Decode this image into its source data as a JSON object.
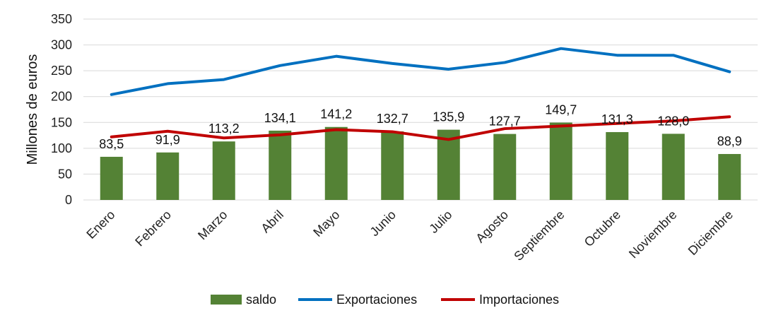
{
  "chart_data": {
    "type": "bar",
    "categories": [
      "Enero",
      "Febrero",
      "Marzo",
      "Abril",
      "Mayo",
      "Junio",
      "Julio",
      "Agosto",
      "Septiembre",
      "Octubre",
      "Noviembre",
      "Diciembre"
    ],
    "series": [
      {
        "name": "saldo",
        "type": "bar",
        "values": [
          83.5,
          91.9,
          113.2,
          134.1,
          141.2,
          132.7,
          135.9,
          127.7,
          149.7,
          131.3,
          128.0,
          88.9
        ],
        "color": "#548235"
      },
      {
        "name": "Exportaciones",
        "type": "line",
        "values": [
          204,
          225,
          233,
          260,
          278,
          264,
          253,
          266,
          293,
          280,
          280,
          248
        ],
        "color": "#0070c0"
      },
      {
        "name": "Importaciones",
        "type": "line",
        "values": [
          122,
          133,
          120,
          126,
          136,
          132,
          117,
          138,
          143,
          148,
          153,
          161
        ],
        "color": "#c00000"
      }
    ],
    "data_labels": [
      "83,5",
      "91,9",
      "113,2",
      "134,1",
      "141,2",
      "132,7",
      "135,9",
      "127,7",
      "149,7",
      "131,3",
      "128,0",
      "88,9"
    ],
    "ylabel": "Millones de euros",
    "xlabel": "",
    "ylim": [
      0,
      350
    ],
    "yticks": [
      0,
      50,
      100,
      150,
      200,
      250,
      300,
      350
    ],
    "grid": true,
    "legend": "bottom"
  }
}
